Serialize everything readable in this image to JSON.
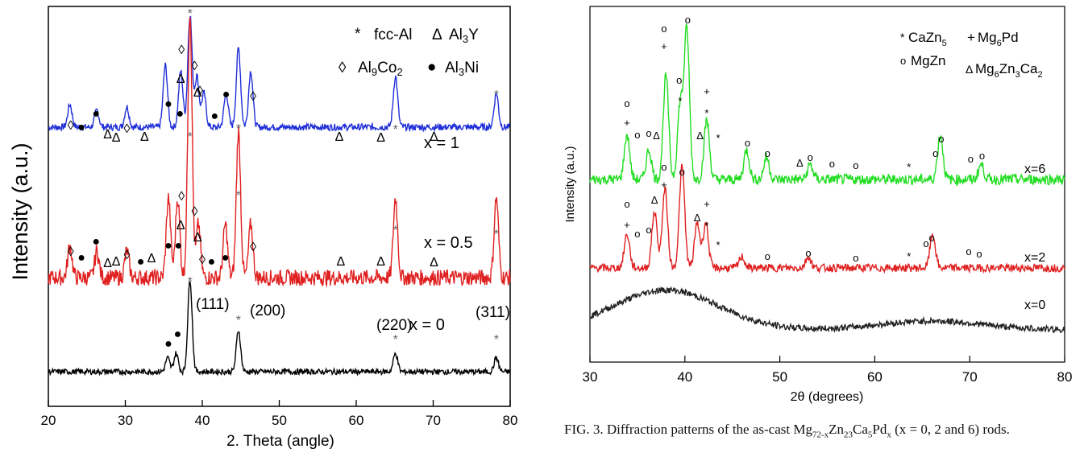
{
  "chart_data": [
    {
      "type": "line",
      "xlabel": "2. Theta (angle)",
      "ylabel": "Intensity (a.u.)",
      "xlim": [
        20,
        80
      ],
      "xticks": [
        20,
        30,
        40,
        50,
        60,
        70,
        80
      ],
      "grid": false,
      "legend_position": "top-right",
      "legend": [
        {
          "symbol": "*",
          "label": "fcc-Al"
        },
        {
          "symbol": "Δ",
          "label": "Al3Y"
        },
        {
          "symbol": "◊",
          "label": "Al9Co2"
        },
        {
          "symbol": "●",
          "label": "Al3Ni"
        }
      ],
      "series": [
        {
          "name": "x = 1",
          "color": "#1f2fd8",
          "peaks": [
            [
              22.8,
              0.2
            ],
            [
              26.3,
              0.15
            ],
            [
              30.2,
              0.18
            ],
            [
              35.2,
              0.55
            ],
            [
              37.2,
              0.5
            ],
            [
              38.4,
              1.0
            ],
            [
              39.3,
              0.45
            ],
            [
              40.2,
              0.3
            ],
            [
              43.1,
              0.3
            ],
            [
              44.7,
              0.7
            ],
            [
              46.3,
              0.5
            ],
            [
              65.1,
              0.45
            ],
            [
              78.2,
              0.3
            ]
          ]
        },
        {
          "name": "x = 0.5",
          "color": "#e02020",
          "peaks": [
            [
              22.8,
              0.12
            ],
            [
              26.3,
              0.1
            ],
            [
              30.2,
              0.1
            ],
            [
              35.6,
              0.3
            ],
            [
              36.8,
              0.3
            ],
            [
              38.4,
              1.0
            ],
            [
              39.5,
              0.2
            ],
            [
              43.0,
              0.2
            ],
            [
              44.7,
              0.55
            ],
            [
              46.3,
              0.2
            ],
            [
              65.1,
              0.3
            ],
            [
              78.2,
              0.3
            ]
          ]
        },
        {
          "name": "x = 0",
          "color": "#000000",
          "peaks": [
            [
              35.5,
              0.15
            ],
            [
              36.6,
              0.2
            ],
            [
              38.4,
              1.0
            ],
            [
              44.7,
              0.45
            ],
            [
              65.1,
              0.2
            ],
            [
              78.2,
              0.15
            ]
          ]
        }
      ],
      "annotations": [
        "(111)",
        "(200)",
        "(220)",
        "(311)"
      ],
      "labels": {
        "x1": "x = 1",
        "x05": "x = 0.5",
        "x0": "x = 0",
        "hkl111": "(111)",
        "hkl200": "(200)",
        "hkl220": "(220)",
        "hkl311": "(311)"
      }
    },
    {
      "type": "line",
      "xlabel": "2θ (degrees)",
      "ylabel": "Intensity (a.u.)",
      "xlim": [
        30,
        80
      ],
      "xticks": [
        30,
        40,
        50,
        60,
        70,
        80
      ],
      "grid": false,
      "legend_position": "top-right",
      "legend": [
        {
          "symbol": "*",
          "label": "CaZn5"
        },
        {
          "symbol": "+",
          "label": "Mg6Pd"
        },
        {
          "symbol": "o",
          "label": "MgZn"
        },
        {
          "symbol": "Δ",
          "label": "Mg6Zn3Ca2"
        }
      ],
      "series": [
        {
          "name": "x=6",
          "color": "#22dd22",
          "peaks": [
            [
              33.9,
              0.3
            ],
            [
              36.2,
              0.2
            ],
            [
              38.0,
              0.7
            ],
            [
              39.5,
              0.5
            ],
            [
              40.2,
              1.0
            ],
            [
              42.3,
              0.4
            ],
            [
              46.5,
              0.2
            ],
            [
              48.6,
              0.15
            ],
            [
              53.2,
              0.1
            ],
            [
              66.9,
              0.3
            ],
            [
              71.2,
              0.1
            ]
          ]
        },
        {
          "name": "x=2",
          "color": "#e02020",
          "peaks": [
            [
              33.9,
              0.3
            ],
            [
              36.8,
              0.5
            ],
            [
              37.9,
              0.7
            ],
            [
              39.7,
              0.9
            ],
            [
              41.3,
              0.4
            ],
            [
              42.2,
              0.4
            ],
            [
              46.0,
              0.1
            ],
            [
              53.0,
              0.1
            ],
            [
              66.1,
              0.3
            ]
          ]
        },
        {
          "name": "x=0",
          "color": "#222222",
          "halos": [
            [
              38,
              0.45
            ],
            [
              66,
              0.1
            ]
          ]
        }
      ],
      "labels": {
        "x6": "x=6",
        "x2": "x=2",
        "x0": "x=0"
      }
    }
  ],
  "caption": "FIG. 3. Diffraction patterns of the as-cast Mg72-xZn23Ca5Pdx (x = 0, 2 and 6) rods."
}
